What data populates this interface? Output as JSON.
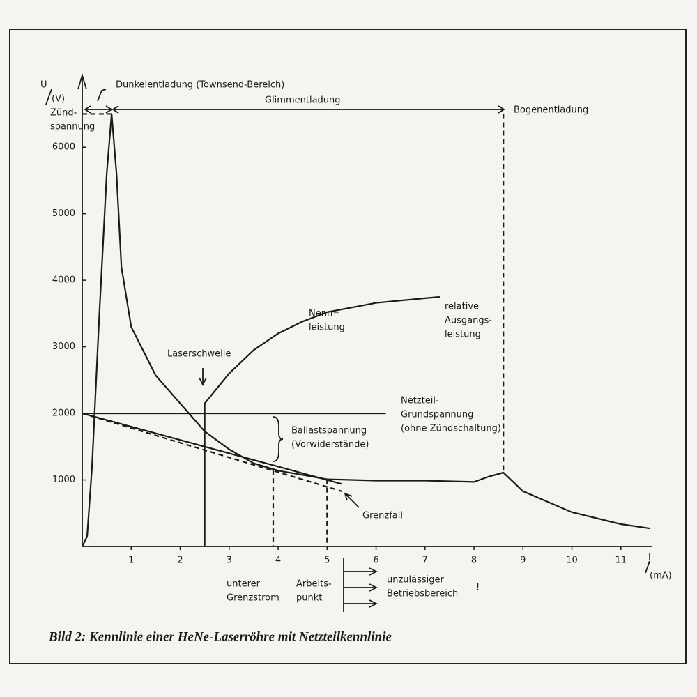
{
  "chart_data": {
    "type": "line",
    "title": "Bild 2: Kennlinie einer HeNe-Laserröhre mit Netzteilkennlinie",
    "y_label": [
      "U",
      "(V)"
    ],
    "x_label": [
      "I",
      "(mA)"
    ],
    "xlim": [
      0,
      11.7
    ],
    "ylim": [
      0,
      7060
    ],
    "xticks": [
      1,
      2,
      3,
      4,
      5,
      6,
      7,
      8,
      9,
      10,
      11
    ],
    "yticks": [
      1000,
      2000,
      3000,
      4000,
      5000,
      6000
    ],
    "series": [
      {
        "color": "#1a1a1a",
        "dash": false,
        "x": [
          0,
          0.1,
          0.2,
          0.35,
          0.5,
          0.6,
          0.7,
          0.8,
          1,
          1.5,
          2,
          2.5,
          3,
          3.5,
          4,
          5,
          6,
          7,
          8,
          8.3,
          8.6,
          9,
          10,
          11,
          11.6
        ],
        "values": [
          0,
          150,
          1200,
          3500,
          5600,
          6500,
          5600,
          4200,
          3300,
          2570,
          2150,
          1730,
          1460,
          1250,
          1140,
          1010,
          990,
          990,
          970,
          1050,
          1110,
          830,
          515,
          335,
          270
        ]
      },
      {
        "color": "#1a1a1a",
        "dash": false,
        "x": [
          0,
          6.2
        ],
        "values": [
          2000,
          2000
        ]
      },
      {
        "color": "#1a1a1a",
        "dash": false,
        "x": [
          0,
          5.3
        ],
        "values": [
          2000,
          940
        ]
      },
      {
        "color": "#1a1a1a",
        "dash": true,
        "x": [
          0,
          5.3
        ],
        "values": [
          2000,
          830
        ]
      },
      {
        "color": "#1a1a1a",
        "dash": false,
        "x": [
          2.5,
          2.5,
          3,
          3.5,
          4,
          4.5,
          5,
          6,
          7,
          7.3
        ],
        "values": [
          0,
          2150,
          2600,
          2950,
          3200,
          3380,
          3520,
          3660,
          3730,
          3750
        ]
      },
      {
        "color": "#1a1a1a",
        "dash": true,
        "x": [
          3.9,
          3.9
        ],
        "values": [
          1150,
          0
        ]
      },
      {
        "color": "#1a1a1a",
        "dash": true,
        "x": [
          5,
          5
        ],
        "values": [
          1010,
          0
        ]
      },
      {
        "color": "#1a1a1a",
        "dash": true,
        "x": [
          8.6,
          8.6
        ],
        "values": [
          6500,
          1110
        ]
      },
      {
        "color": "#1a1a1a",
        "dash": true,
        "x": [
          0,
          0.6
        ],
        "values": [
          6500,
          6500
        ]
      }
    ],
    "annotations": [
      [
        "Dunkelentladung (Townsend-Bereich)"
      ],
      [
        "Glimmentladung"
      ],
      [
        "Bogenentladung"
      ],
      [
        "Zünd-",
        "spannung"
      ],
      [
        "Laserschwelle"
      ],
      [
        "Nenn=",
        "leistung"
      ],
      [
        "relative",
        "Ausgangs-",
        "leistung"
      ],
      [
        "Netzteil-",
        "Grundspannung",
        "(ohne Zündschaltung)"
      ],
      [
        "Ballastspannung",
        "(Vorwiderstände)"
      ],
      [
        "Grenzfall"
      ],
      [
        "unterer",
        "Grenzstrom"
      ],
      [
        "Arbeits-",
        "punkt"
      ],
      [
        "unzulässiger",
        "Betriebsbereich"
      ],
      [
        "!"
      ]
    ]
  }
}
